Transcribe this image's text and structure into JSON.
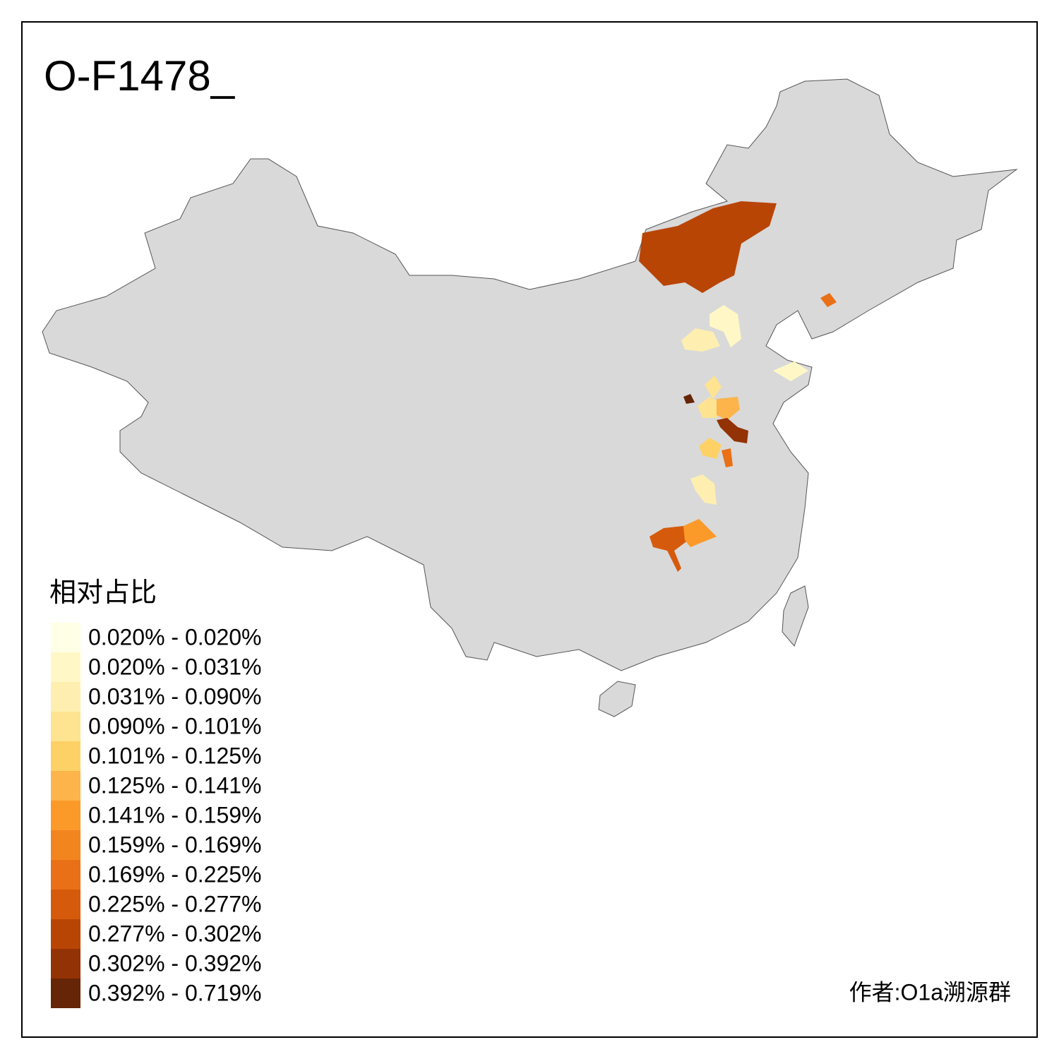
{
  "title": "O-F1478_",
  "legend": {
    "title": "相对占比",
    "items": [
      {
        "label": "0.020% - 0.020%",
        "color": "#ffffe5"
      },
      {
        "label": "0.020% - 0.031%",
        "color": "#fff8c6"
      },
      {
        "label": "0.031% - 0.090%",
        "color": "#feefb0"
      },
      {
        "label": "0.090% - 0.101%",
        "color": "#fee391"
      },
      {
        "label": "0.101% - 0.125%",
        "color": "#fed166"
      },
      {
        "label": "0.125% - 0.141%",
        "color": "#fdb44a"
      },
      {
        "label": "0.141% - 0.159%",
        "color": "#fb9a29"
      },
      {
        "label": "0.159% - 0.169%",
        "color": "#f3851f"
      },
      {
        "label": "0.169% - 0.225%",
        "color": "#e97016"
      },
      {
        "label": "0.225% - 0.277%",
        "color": "#d65a0c"
      },
      {
        "label": "0.277% - 0.302%",
        "color": "#b94504"
      },
      {
        "label": "0.302% - 0.392%",
        "color": "#933205"
      },
      {
        "label": "0.392% - 0.719%",
        "color": "#662506"
      }
    ]
  },
  "credit": "作者:O1a溯源群"
}
